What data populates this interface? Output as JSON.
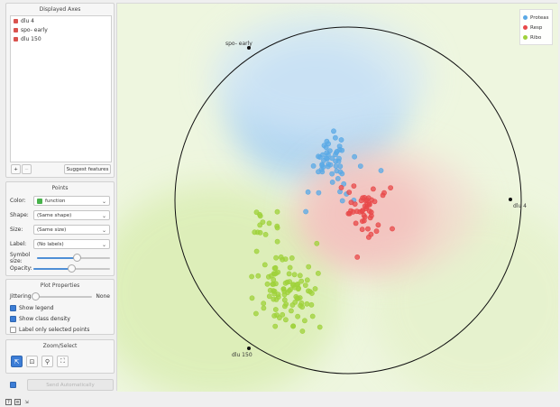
{
  "displayed_axes": {
    "title": "Displayed Axes",
    "items": [
      {
        "label": "dlu 4"
      },
      {
        "label": "spo- early"
      },
      {
        "label": "dlu 150"
      }
    ],
    "add_label": "+",
    "remove_label": "−",
    "suggest_label": "Suggest features"
  },
  "points": {
    "title": "Points",
    "color_label": "Color:",
    "color_value": "function",
    "shape_label": "Shape:",
    "shape_value": "(Same shape)",
    "size_label": "Size:",
    "size_value": "(Same size)",
    "label_label": "Label:",
    "label_value": "(No labels)",
    "symbol_size_label": "Symbol size:",
    "symbol_size": 0.55,
    "opacity_label": "Opacity:",
    "opacity": 0.5
  },
  "plot_properties": {
    "title": "Plot Properties",
    "jittering_label": "Jittering:",
    "jittering_value": "None",
    "jittering": 0.0,
    "show_legend_label": "Show legend",
    "show_legend": true,
    "class_density_label": "Show class density",
    "class_density": true,
    "label_selected_label": "Label only selected points",
    "label_selected": false
  },
  "zoom_select": {
    "title": "Zoom/Select",
    "tools": [
      {
        "name": "pointer-icon",
        "glyph": "⇱",
        "active": true
      },
      {
        "name": "zoom-icon",
        "glyph": "⊡",
        "active": false
      },
      {
        "name": "search-icon",
        "glyph": "⚲",
        "active": false
      },
      {
        "name": "fit-icon",
        "glyph": "⛶",
        "active": false
      }
    ]
  },
  "send": {
    "label": "Send Automatically",
    "auto": true
  },
  "status_icons": [
    "?",
    "≡",
    "⇲"
  ],
  "plot": {
    "anchors": {
      "dlu4": "dlu 4",
      "spo_early": "spo- early",
      "dlu150": "dlu 150"
    },
    "legend": [
      {
        "label": "Proteas",
        "color": "#5aa9e6"
      },
      {
        "label": "Resp",
        "color": "#e8494a"
      },
      {
        "label": "Ribo",
        "color": "#9fd13b"
      }
    ],
    "colors": {
      "proteas": "#5aa9e6",
      "resp": "#e8494a",
      "ribo": "#9fd13b",
      "circle": "#111111"
    }
  }
}
